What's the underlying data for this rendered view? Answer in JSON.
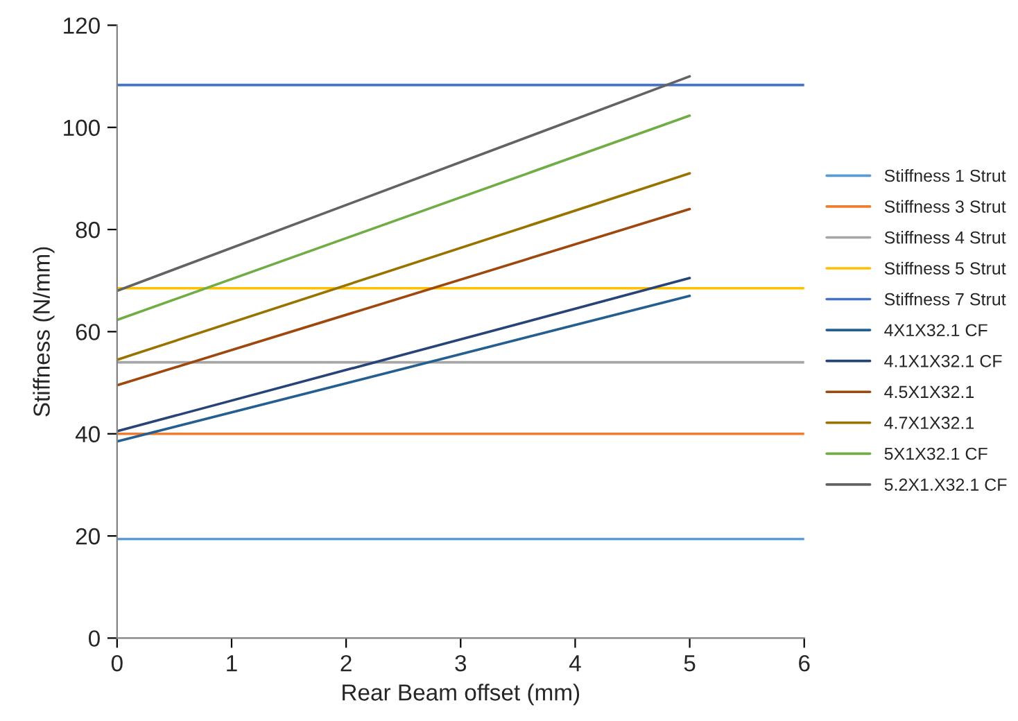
{
  "chart_data": {
    "type": "line",
    "xlabel": "Rear Beam offset (mm)",
    "ylabel": "Stiffness (N/mm)",
    "xlim": [
      0,
      6
    ],
    "xticks": [
      0,
      1,
      2,
      3,
      4,
      5,
      6
    ],
    "ylim": [
      0,
      120
    ],
    "yticks": [
      0,
      20,
      40,
      60,
      80,
      100,
      120
    ],
    "grid": false,
    "legend": "right",
    "marker": "none",
    "line_style": "solid",
    "series": [
      {
        "name": "Stiffness 1 Strut",
        "color": "#5b9bd5",
        "x": [
          0,
          6
        ],
        "values": [
          19.4,
          19.4
        ]
      },
      {
        "name": "Stiffness 3 Strut",
        "color": "#ed7d31",
        "x": [
          0,
          6
        ],
        "values": [
          40,
          40
        ]
      },
      {
        "name": "Stiffness 4 Strut",
        "color": "#a5a5a5",
        "x": [
          0,
          6
        ],
        "values": [
          54,
          54
        ]
      },
      {
        "name": "Stiffness 5 Strut",
        "color": "#ffc000",
        "x": [
          0,
          6
        ],
        "values": [
          68.5,
          68.5
        ]
      },
      {
        "name": "Stiffness 7 Strut",
        "color": "#4472c4",
        "x": [
          0,
          6
        ],
        "values": [
          108.3,
          108.3
        ]
      },
      {
        "name": "4X1X32.1 CF",
        "color": "#255e91",
        "x": [
          0,
          5
        ],
        "values": [
          38.5,
          67
        ]
      },
      {
        "name": "4.1X1X32.1 CF",
        "color": "#264478",
        "x": [
          0,
          5
        ],
        "values": [
          40.5,
          70.5
        ]
      },
      {
        "name": "4.5X1X32.1",
        "color": "#9e480e",
        "x": [
          0,
          5
        ],
        "values": [
          49.5,
          84
        ]
      },
      {
        "name": "4.7X1X32.1",
        "color": "#997300",
        "x": [
          0,
          5
        ],
        "values": [
          54.5,
          91
        ]
      },
      {
        "name": "5X1X32.1 CF",
        "color": "#70ad47",
        "x": [
          0,
          5
        ],
        "values": [
          62.3,
          102.3
        ]
      },
      {
        "name": "5.2X1.X32.1 CF",
        "color": "#636363",
        "x": [
          0,
          5
        ],
        "values": [
          68,
          110
        ]
      }
    ]
  }
}
